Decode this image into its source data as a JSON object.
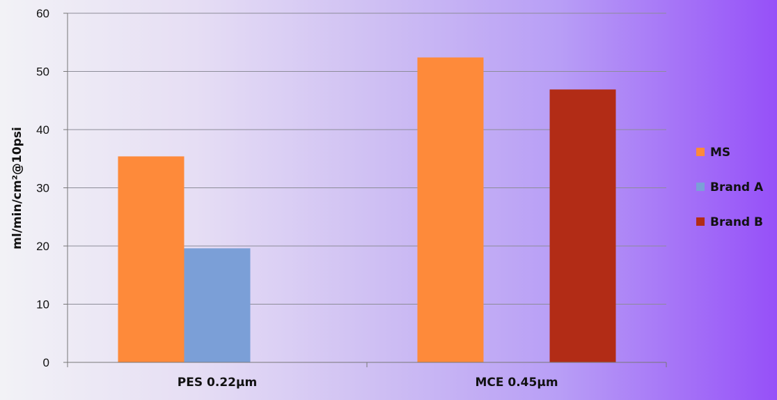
{
  "chart_data": {
    "type": "bar",
    "categories": [
      "PES 0.22µm",
      "MCE 0.45µm"
    ],
    "series": [
      {
        "name": "MS",
        "color": "#fe8a3a",
        "values": [
          35.4,
          52.4
        ]
      },
      {
        "name": "Brand A",
        "color": "#7b9fd7",
        "values": [
          19.6,
          null
        ]
      },
      {
        "name": "Brand B",
        "color": "#b22c16",
        "values": [
          null,
          46.9
        ]
      }
    ],
    "ylabel": "ml/min/cm²@10psi",
    "ylim": [
      0,
      60
    ],
    "yticks": [
      0,
      10,
      20,
      30,
      40,
      50,
      60
    ],
    "grid": true,
    "legend_position": "right"
  }
}
